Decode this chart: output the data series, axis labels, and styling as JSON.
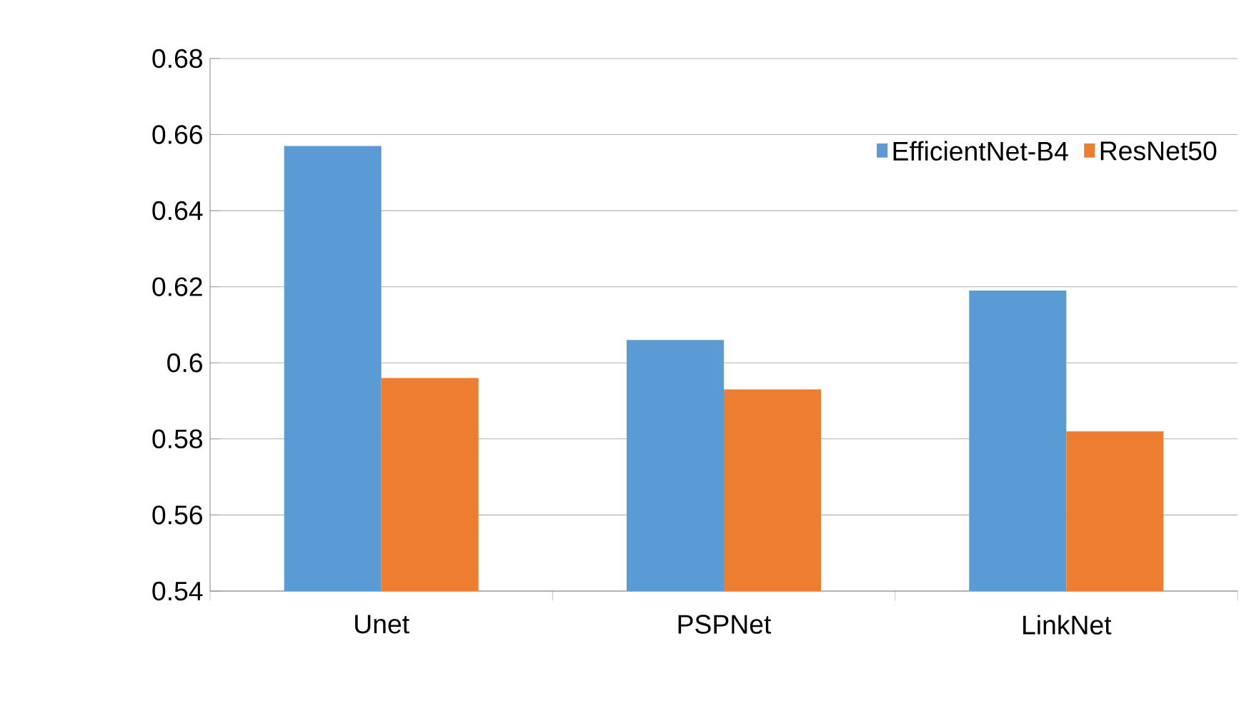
{
  "chart_data": {
    "type": "bar",
    "categories": [
      "Unet",
      "PSPNet",
      "LinkNet"
    ],
    "series": [
      {
        "name": "EfficientNet-B4",
        "color": "#5b9bd5",
        "values": [
          0.657,
          0.606,
          0.619
        ]
      },
      {
        "name": "ResNet50",
        "color": "#ed7d31",
        "values": [
          0.596,
          0.593,
          0.582
        ]
      }
    ],
    "ylim": [
      0.54,
      0.68
    ],
    "yticks": [
      0.54,
      0.56,
      0.58,
      0.6,
      0.62,
      0.64,
      0.66,
      0.68
    ],
    "grid": "y",
    "legend": "top right"
  }
}
